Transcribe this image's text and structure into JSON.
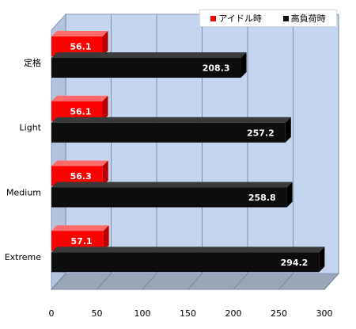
{
  "chart_data": {
    "type": "bar",
    "orientation": "horizontal",
    "categories": [
      "定格",
      "Light",
      "Medium",
      "Extreme"
    ],
    "series": [
      {
        "name": "アイドル時",
        "values": [
          56.1,
          56.1,
          56.3,
          57.1
        ],
        "color": "#ff0000"
      },
      {
        "name": "高負荷時",
        "values": [
          208.3,
          257.2,
          258.8,
          294.2
        ],
        "color": "#111111"
      }
    ],
    "xlim": [
      0,
      300
    ],
    "xticks": [
      0,
      50,
      100,
      150,
      200,
      250,
      300
    ],
    "title": "",
    "xlabel": "",
    "ylabel": "",
    "grid": true,
    "legend_position": "top-right",
    "plot_background": "#c5d5ee"
  }
}
